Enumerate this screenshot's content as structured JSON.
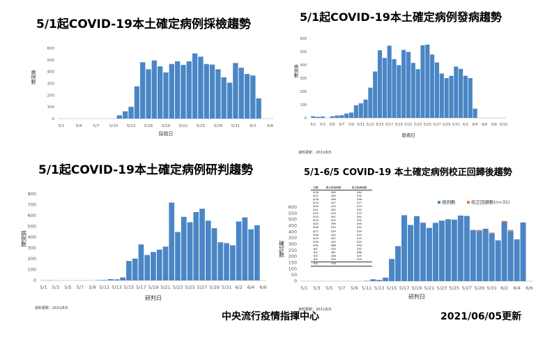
{
  "charts_titles": {
    "testing": "5/1起COVID-19本土確定病例採檢趨勢",
    "onset": "5/1起COVID-19本土確定病例發病趨勢",
    "confirm": "5/1起COVID-19本土確定病例研判趨勢",
    "corrected": "5/1-6/5 COVID-19 本土確定病例校正回歸後趨勢"
  },
  "notes": {
    "update_onset": "資料更新：2021/6/5",
    "update_confirm": "資料更新：2021/6/5",
    "update_corrected": "資料更新：2021/6/5"
  },
  "footer": {
    "org": "中央流行疫情指揮中心",
    "date": "2021/06/05更新"
  },
  "chart_data": [
    {
      "type": "bar",
      "title": "5/1起COVID-19本土確定病例採檢趨勢",
      "xlabel": "採檢日",
      "ylabel": "病例數",
      "ylim": [
        0,
        600
      ],
      "y_ticks": [
        0,
        100,
        200,
        300,
        400,
        500,
        600
      ],
      "x_ticks": [
        "5/1",
        "5/4",
        "5/7",
        "5/10",
        "5/13",
        "5/16",
        "5/19",
        "5/22",
        "5/25",
        "5/28",
        "5/31",
        "6/3",
        "6/6"
      ],
      "color": "#4a86c5",
      "categories": [
        "5/11",
        "5/12",
        "5/13",
        "5/14",
        "5/15",
        "5/16",
        "5/17",
        "5/18",
        "5/19",
        "5/20",
        "5/21",
        "5/22",
        "5/23",
        "5/24",
        "5/25",
        "5/26",
        "5/27",
        "5/28",
        "5/29",
        "5/30",
        "5/31",
        "6/1",
        "6/2",
        "6/3",
        "6/4"
      ],
      "values": [
        28,
        62,
        100,
        275,
        480,
        420,
        495,
        445,
        393,
        465,
        488,
        457,
        488,
        555,
        527,
        465,
        460,
        420,
        352,
        306,
        473,
        433,
        380,
        367,
        172
      ]
    },
    {
      "type": "bar",
      "title": "5/1起COVID-19本土確定病例發病趨勢",
      "xlabel": "發病日",
      "ylabel": "病例數",
      "ylim": [
        0,
        600
      ],
      "y_ticks": [
        0,
        100,
        200,
        300,
        400,
        500,
        600
      ],
      "x_ticks": [
        "5/1",
        "5/3",
        "5/5",
        "5/7",
        "5/9",
        "5/11",
        "5/13",
        "5/15",
        "5/17",
        "5/19",
        "5/21",
        "5/23",
        "5/25",
        "5/27",
        "5/29",
        "5/31",
        "6/2",
        "6/4",
        "6/6",
        "6/8",
        "6/10"
      ],
      "color": "#4a86c5",
      "categories": [
        "5/1",
        "5/2",
        "5/3",
        "5/4",
        "5/5",
        "5/6",
        "5/7",
        "5/8",
        "5/9",
        "5/10",
        "5/11",
        "5/12",
        "5/13",
        "5/14",
        "5/15",
        "5/16",
        "5/17",
        "5/18",
        "5/19",
        "5/20",
        "5/21",
        "5/22",
        "5/23",
        "5/24",
        "5/25",
        "5/26",
        "5/27",
        "5/28",
        "5/29",
        "5/30",
        "5/31",
        "6/1",
        "6/2",
        "6/3",
        "6/4"
      ],
      "values": [
        12,
        8,
        10,
        0,
        12,
        18,
        20,
        33,
        40,
        95,
        110,
        138,
        228,
        350,
        510,
        452,
        545,
        443,
        398,
        513,
        498,
        415,
        368,
        548,
        553,
        478,
        418,
        335,
        300,
        317,
        387,
        370,
        318,
        300,
        70
      ]
    },
    {
      "type": "bar",
      "title": "5/1起COVID-19本土確定病例研判趨勢",
      "xlabel": "研判日",
      "ylabel": "病例數",
      "ylim": [
        0,
        800
      ],
      "y_ticks": [
        0,
        100,
        200,
        300,
        400,
        500,
        600,
        700,
        800
      ],
      "x_ticks": [
        "5/1",
        "5/3",
        "5/5",
        "5/7",
        "5/9",
        "5/11",
        "5/13",
        "5/15",
        "5/17",
        "5/19",
        "5/21",
        "5/23",
        "5/25",
        "5/27",
        "5/29",
        "5/31",
        "6/2",
        "6/4",
        "6/6"
      ],
      "color": "#4a86c5",
      "categories": [
        "5/1",
        "5/2",
        "5/10",
        "5/11",
        "5/12",
        "5/13",
        "5/14",
        "5/15",
        "5/16",
        "5/17",
        "5/18",
        "5/19",
        "5/20",
        "5/21",
        "5/22",
        "5/23",
        "5/24",
        "5/25",
        "5/26",
        "5/27",
        "5/28",
        "5/29",
        "5/30",
        "5/31",
        "6/1",
        "6/2",
        "6/3",
        "6/4",
        "6/5"
      ],
      "values": [
        1,
        2,
        3,
        5,
        12,
        10,
        28,
        180,
        202,
        333,
        235,
        263,
        285,
        313,
        720,
        448,
        588,
        538,
        632,
        663,
        553,
        483,
        353,
        345,
        325,
        545,
        583,
        473,
        510
      ]
    },
    {
      "type": "bar",
      "stacked": true,
      "title": "5/1-6/5 COVID-19 本土確定病例校正回歸後趨勢",
      "xlabel": "研判日",
      "ylabel": "確診數",
      "ylim": [
        0,
        600
      ],
      "y_ticks": [
        0,
        50,
        100,
        150,
        200,
        250,
        300,
        350,
        400,
        450,
        500,
        550,
        600
      ],
      "x_ticks": [
        "5/1",
        "5/3",
        "5/5",
        "5/7",
        "5/9",
        "5/11",
        "5/13",
        "5/15",
        "5/17",
        "5/19",
        "5/21",
        "5/23",
        "5/25",
        "5/27",
        "5/29",
        "5/31",
        "6/2",
        "6/4",
        "6/6"
      ],
      "legend": "top-right",
      "categories": [
        "5/11",
        "5/12",
        "5/13",
        "5/14",
        "5/15",
        "5/16",
        "5/17",
        "5/18",
        "5/19",
        "5/20",
        "5/21",
        "5/22",
        "5/23",
        "5/24",
        "5/25",
        "5/26",
        "5/27",
        "5/28",
        "5/29",
        "5/30",
        "5/31",
        "6/1",
        "6/2",
        "6/3",
        "6/4",
        "6/5"
      ],
      "series": [
        {
          "name": "病例數",
          "color": "#4a86c5",
          "values": [
            3,
            15,
            10,
            28,
            180,
            283,
            535,
            456,
            527,
            474,
            432,
            473,
            491,
            502,
            499,
            532,
            529,
            415,
            407,
            425,
            386,
            330,
            481,
            406,
            339,
            476
          ]
        },
        {
          "name": "校正回歸數(n=35)",
          "color": "#ed7d31",
          "values": [
            0,
            0,
            0,
            0,
            0,
            1,
            0,
            0,
            0,
            0,
            0,
            0,
            0,
            0,
            0,
            0,
            0,
            0,
            8,
            0,
            8,
            2,
            7,
            9,
            0,
            0
          ]
        }
      ],
      "table": {
        "headers": [
          "日期",
          "原公布病例數",
          "校正後病例數"
        ],
        "rows": [
          [
            "5/16",
            "283",
            "284"
          ],
          [
            "5/17",
            "535",
            "535"
          ],
          [
            "5/18",
            "456",
            "456"
          ],
          [
            "5/19",
            "527",
            "527"
          ],
          [
            "5/20",
            "474",
            "474"
          ],
          [
            "5/21",
            "432",
            "432"
          ],
          [
            "5/22",
            "473",
            "473"
          ],
          [
            "5/23",
            "491",
            "491"
          ],
          [
            "5/24",
            "502",
            "502"
          ],
          [
            "5/25",
            "499",
            "499"
          ],
          [
            "5/26",
            "532",
            "532"
          ],
          [
            "5/27",
            "529",
            "529"
          ],
          [
            "5/28",
            "415",
            "415"
          ],
          [
            "5/29",
            "407",
            "415"
          ],
          [
            "5/30",
            "425",
            "425"
          ],
          [
            "5/31",
            "386",
            "394"
          ],
          [
            "6/1",
            "330",
            "332"
          ],
          [
            "6/2",
            "481",
            "488"
          ],
          [
            "6/3",
            "406",
            "415"
          ],
          [
            "6/4",
            "339",
            "339"
          ],
          [
            "6/5",
            "476",
            "-"
          ]
        ]
      }
    }
  ]
}
